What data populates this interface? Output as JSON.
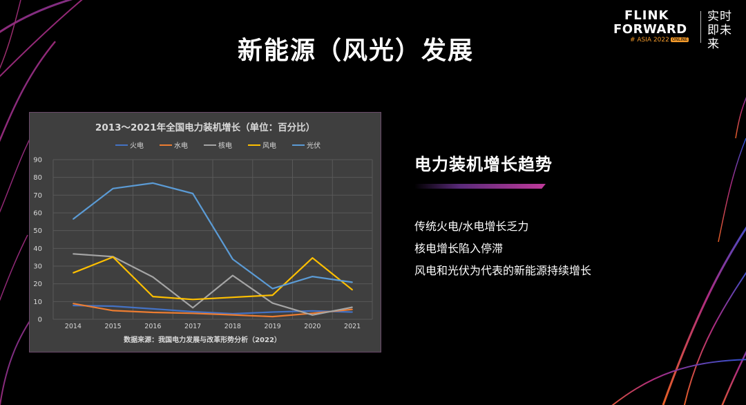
{
  "slide": {
    "title": "新能源（风光）发展",
    "logo": {
      "line1": "FLINK",
      "line2": "FORWARD",
      "sub": "# ASIA 2022",
      "badge": "ONLINE",
      "slogan": "实时即未来"
    },
    "side": {
      "title": "电力装机增长趋势",
      "points": [
        "传统火电/水电增长乏力",
        "核电增长陷入停滞",
        "风电和光伏为代表的新能源持续增长"
      ]
    },
    "colors": {
      "background": "#000000",
      "chart_bg": "#3f3f3f",
      "accent": "#c03a9a",
      "logo_orange": "#f39a2b"
    }
  },
  "chart_data": {
    "type": "line",
    "title": "2013～2021年全国电力装机增长（单位：百分比）",
    "source": "数据来源：我国电力发展与改革形势分析（2022）",
    "xlabel": "",
    "ylabel": "",
    "categories": [
      "2014",
      "2015",
      "2016",
      "2017",
      "2018",
      "2019",
      "2020",
      "2021"
    ],
    "ylim": [
      0,
      90
    ],
    "yticks": [
      0,
      10,
      20,
      30,
      40,
      50,
      60,
      70,
      80,
      90
    ],
    "grid": true,
    "legend_position": "top",
    "series": [
      {
        "name": "火电",
        "color": "#4472c4",
        "values": [
          7.8,
          7.4,
          5.9,
          4.3,
          3.1,
          4.1,
          4.7,
          4.1
        ]
      },
      {
        "name": "水电",
        "color": "#ed7d31",
        "values": [
          8.9,
          4.9,
          3.9,
          3.4,
          2.5,
          1.5,
          3.4,
          5.6
        ]
      },
      {
        "name": "核电",
        "color": "#a5a5a5",
        "values": [
          36.9,
          35.3,
          23.8,
          6.5,
          24.7,
          9.1,
          2.4,
          6.8
        ]
      },
      {
        "name": "风电",
        "color": "#ffc000",
        "values": [
          26.2,
          35.1,
          12.8,
          11.2,
          12.4,
          13.6,
          34.6,
          16.6
        ]
      },
      {
        "name": "光伏",
        "color": "#5b9bd5",
        "values": [
          56.5,
          73.7,
          76.8,
          70.9,
          33.9,
          17.3,
          24.1,
          20.9
        ]
      }
    ]
  }
}
